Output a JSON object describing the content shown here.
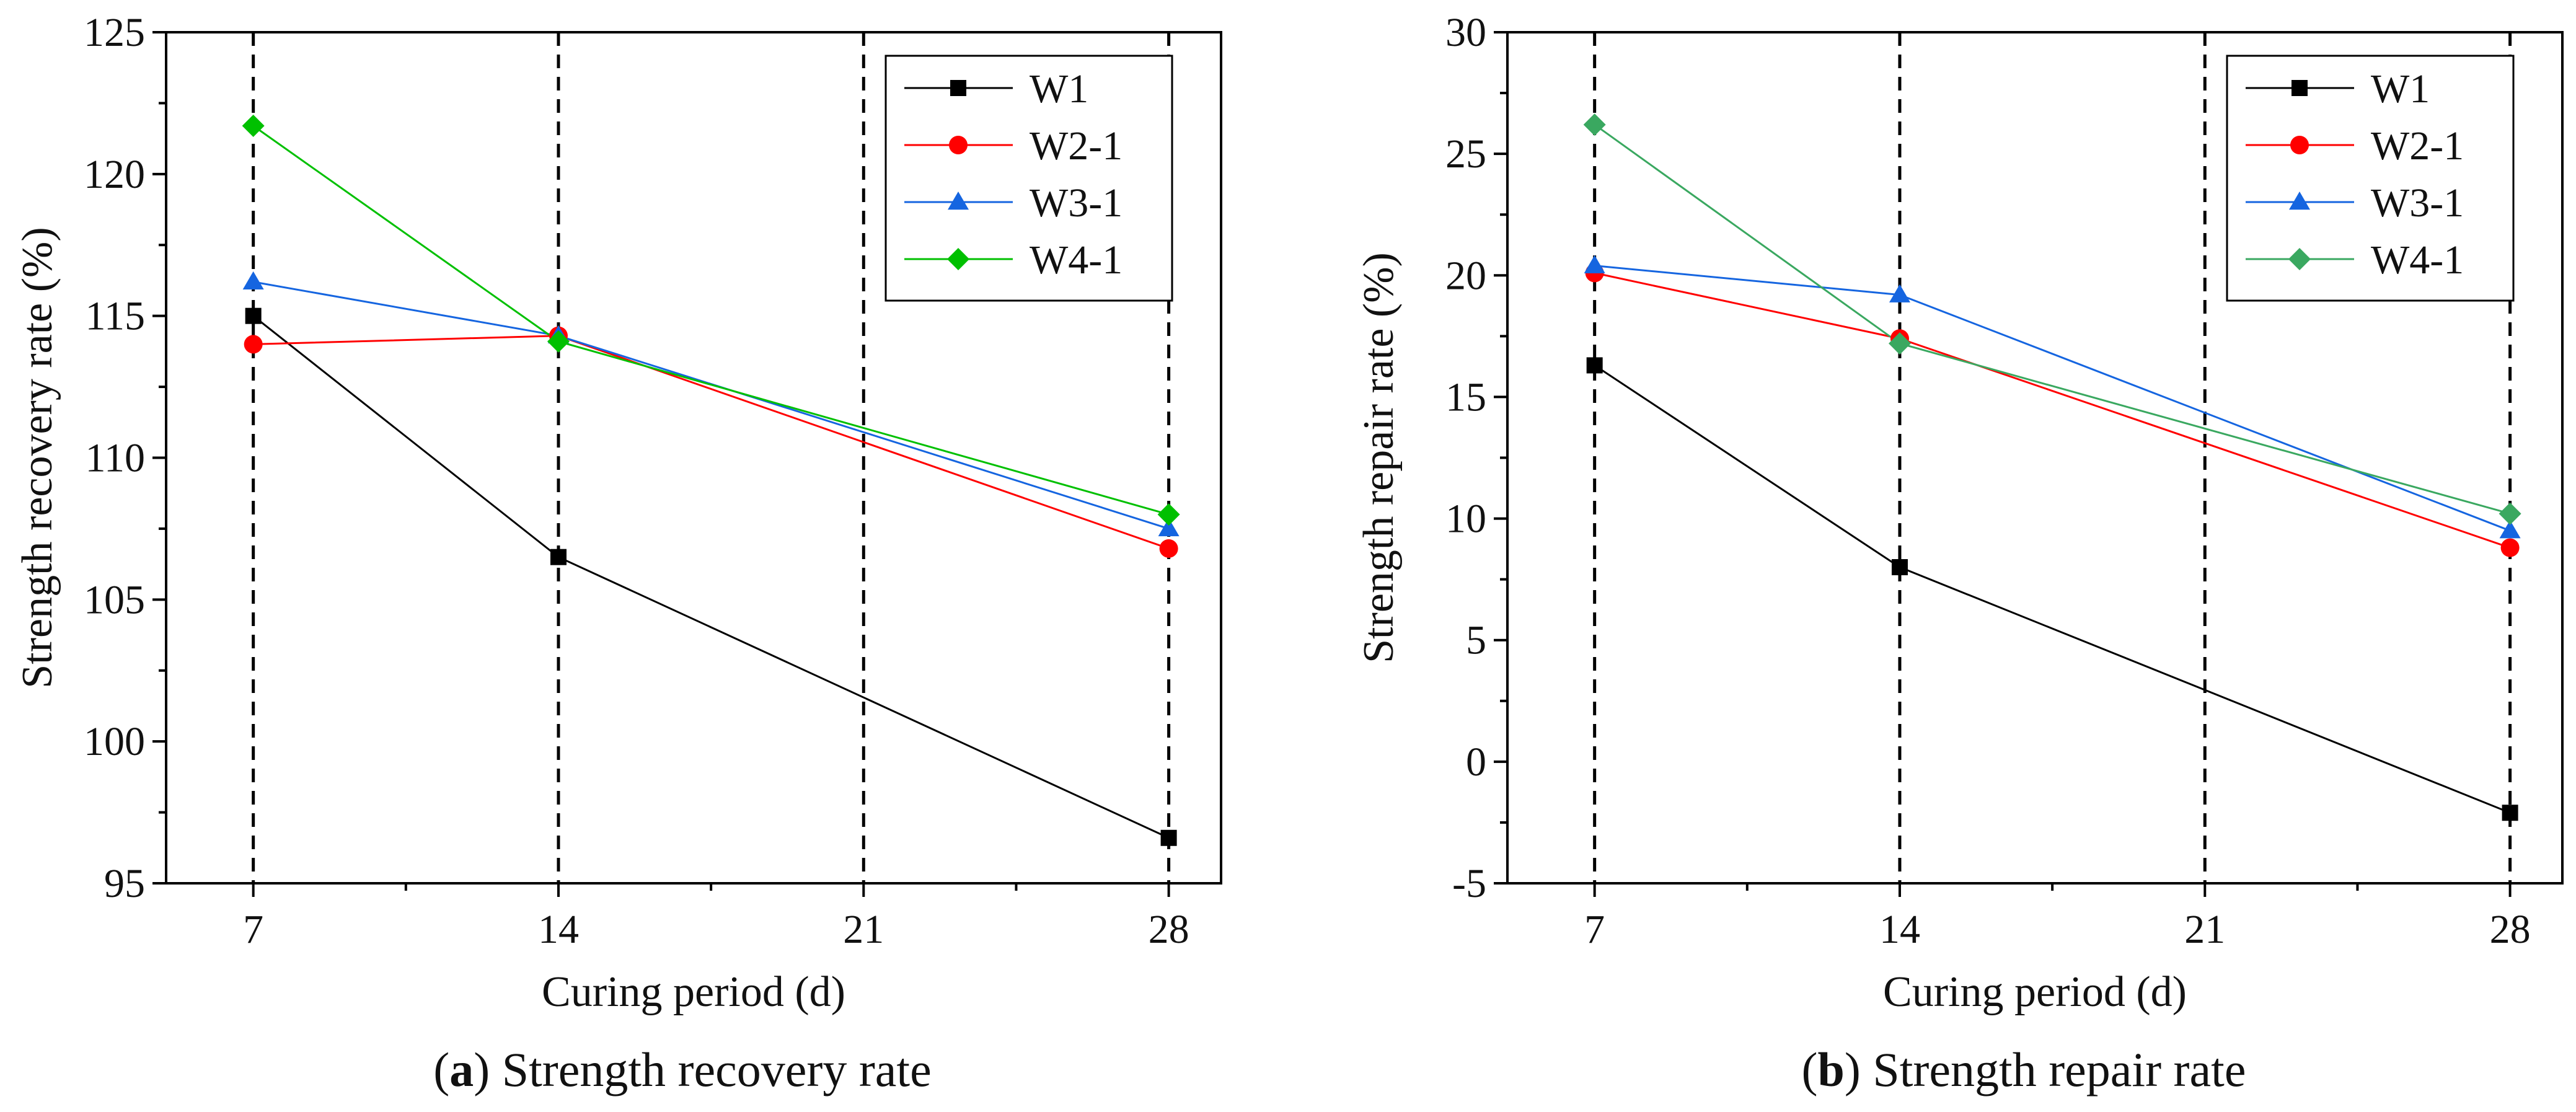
{
  "chart_data": [
    {
      "type": "line",
      "caption_letter": "a",
      "caption_text": "Strength recovery rate",
      "xlabel": "Curing period (d)",
      "ylabel": "Strength recovery rate (%)",
      "x": [
        7,
        14,
        28
      ],
      "xticks": [
        "7",
        "14",
        "21",
        "28"
      ],
      "xtick_values": [
        7,
        14,
        21,
        28
      ],
      "xlim": [
        5,
        29.2
      ],
      "yticks": [
        "95",
        "100",
        "105",
        "110",
        "115",
        "120",
        "125"
      ],
      "ytick_values": [
        95,
        100,
        105,
        110,
        115,
        120,
        125
      ],
      "ylim": [
        95,
        125
      ],
      "dashed_verticals": [
        7,
        14,
        21,
        28
      ],
      "legend_position": "top-right",
      "series": [
        {
          "name": "W1",
          "values": [
            115.0,
            106.5,
            96.6
          ],
          "color": "#000000",
          "marker": "square"
        },
        {
          "name": "W2-1",
          "values": [
            114.0,
            114.3,
            106.8
          ],
          "color": "#ff0000",
          "marker": "circle"
        },
        {
          "name": "W3-1",
          "values": [
            116.2,
            114.3,
            107.5
          ],
          "color": "#1565e0",
          "marker": "triangle"
        },
        {
          "name": "W4-1",
          "values": [
            121.7,
            114.1,
            108.0
          ],
          "color": "#00c000",
          "marker": "diamond"
        }
      ]
    },
    {
      "type": "line",
      "caption_letter": "b",
      "caption_text": "Strength repair rate",
      "xlabel": "Curing period (d)",
      "ylabel": "Strength repair rate (%)",
      "x": [
        7,
        14,
        28
      ],
      "xticks": [
        "7",
        "14",
        "21",
        "28"
      ],
      "xtick_values": [
        7,
        14,
        21,
        28
      ],
      "xlim": [
        5,
        29.2
      ],
      "yticks": [
        "-5",
        "0",
        "5",
        "10",
        "15",
        "20",
        "25",
        "30"
      ],
      "ytick_values": [
        -5,
        0,
        5,
        10,
        15,
        20,
        25,
        30
      ],
      "ylim": [
        -5,
        30
      ],
      "dashed_verticals": [
        7,
        14,
        21,
        28
      ],
      "legend_position": "top-right",
      "series": [
        {
          "name": "W1",
          "values": [
            16.3,
            8.0,
            -2.1
          ],
          "color": "#000000",
          "marker": "square"
        },
        {
          "name": "W2-1",
          "values": [
            20.1,
            17.4,
            8.8
          ],
          "color": "#ff0000",
          "marker": "circle"
        },
        {
          "name": "W3-1",
          "values": [
            20.4,
            19.2,
            9.5
          ],
          "color": "#1565e0",
          "marker": "triangle"
        },
        {
          "name": "W4-1",
          "values": [
            26.2,
            17.2,
            10.2
          ],
          "color": "#3aa860",
          "marker": "diamond"
        }
      ]
    }
  ]
}
